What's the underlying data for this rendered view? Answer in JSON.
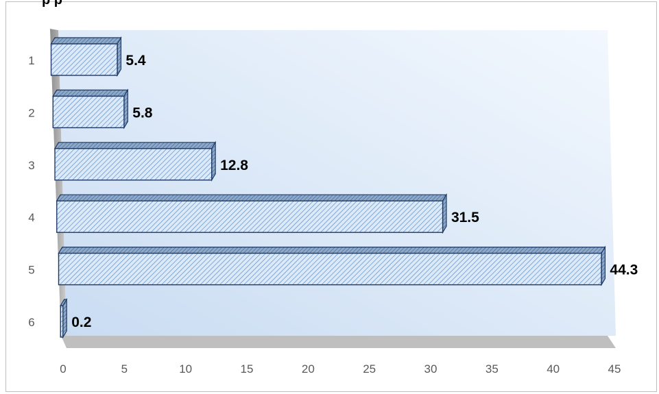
{
  "chart_data": {
    "type": "bar",
    "orientation": "horizontal",
    "style": "3d-clustered-bar",
    "title_fragment": "p     p",
    "categories": [
      "1",
      "2",
      "3",
      "4",
      "5",
      "6"
    ],
    "values": [
      5.4,
      5.8,
      12.8,
      31.5,
      44.3,
      0.2
    ],
    "data_labels": [
      "5.4",
      "5.8",
      "12.8",
      "31.5",
      "44.3",
      "0.2"
    ],
    "xlim": [
      0,
      45
    ],
    "x_ticks": [
      0,
      5,
      10,
      15,
      20,
      25,
      30,
      35,
      40,
      45
    ],
    "x_tick_labels": [
      "0",
      "5",
      "10",
      "15",
      "20",
      "25",
      "30",
      "35",
      "40",
      "45"
    ],
    "grid": false,
    "legend": "none",
    "colors": {
      "bar_fill": "#dce9f7",
      "bar_hatch": "#5b8fd0",
      "bar_outline": "#1f3864",
      "bar_side": "#8ea9c8",
      "plot_back_light": "#eaf3fd",
      "plot_back_dark": "#c9dcf2",
      "floor": "#bfbfbf",
      "side_wall": "#a6a6a6"
    }
  }
}
